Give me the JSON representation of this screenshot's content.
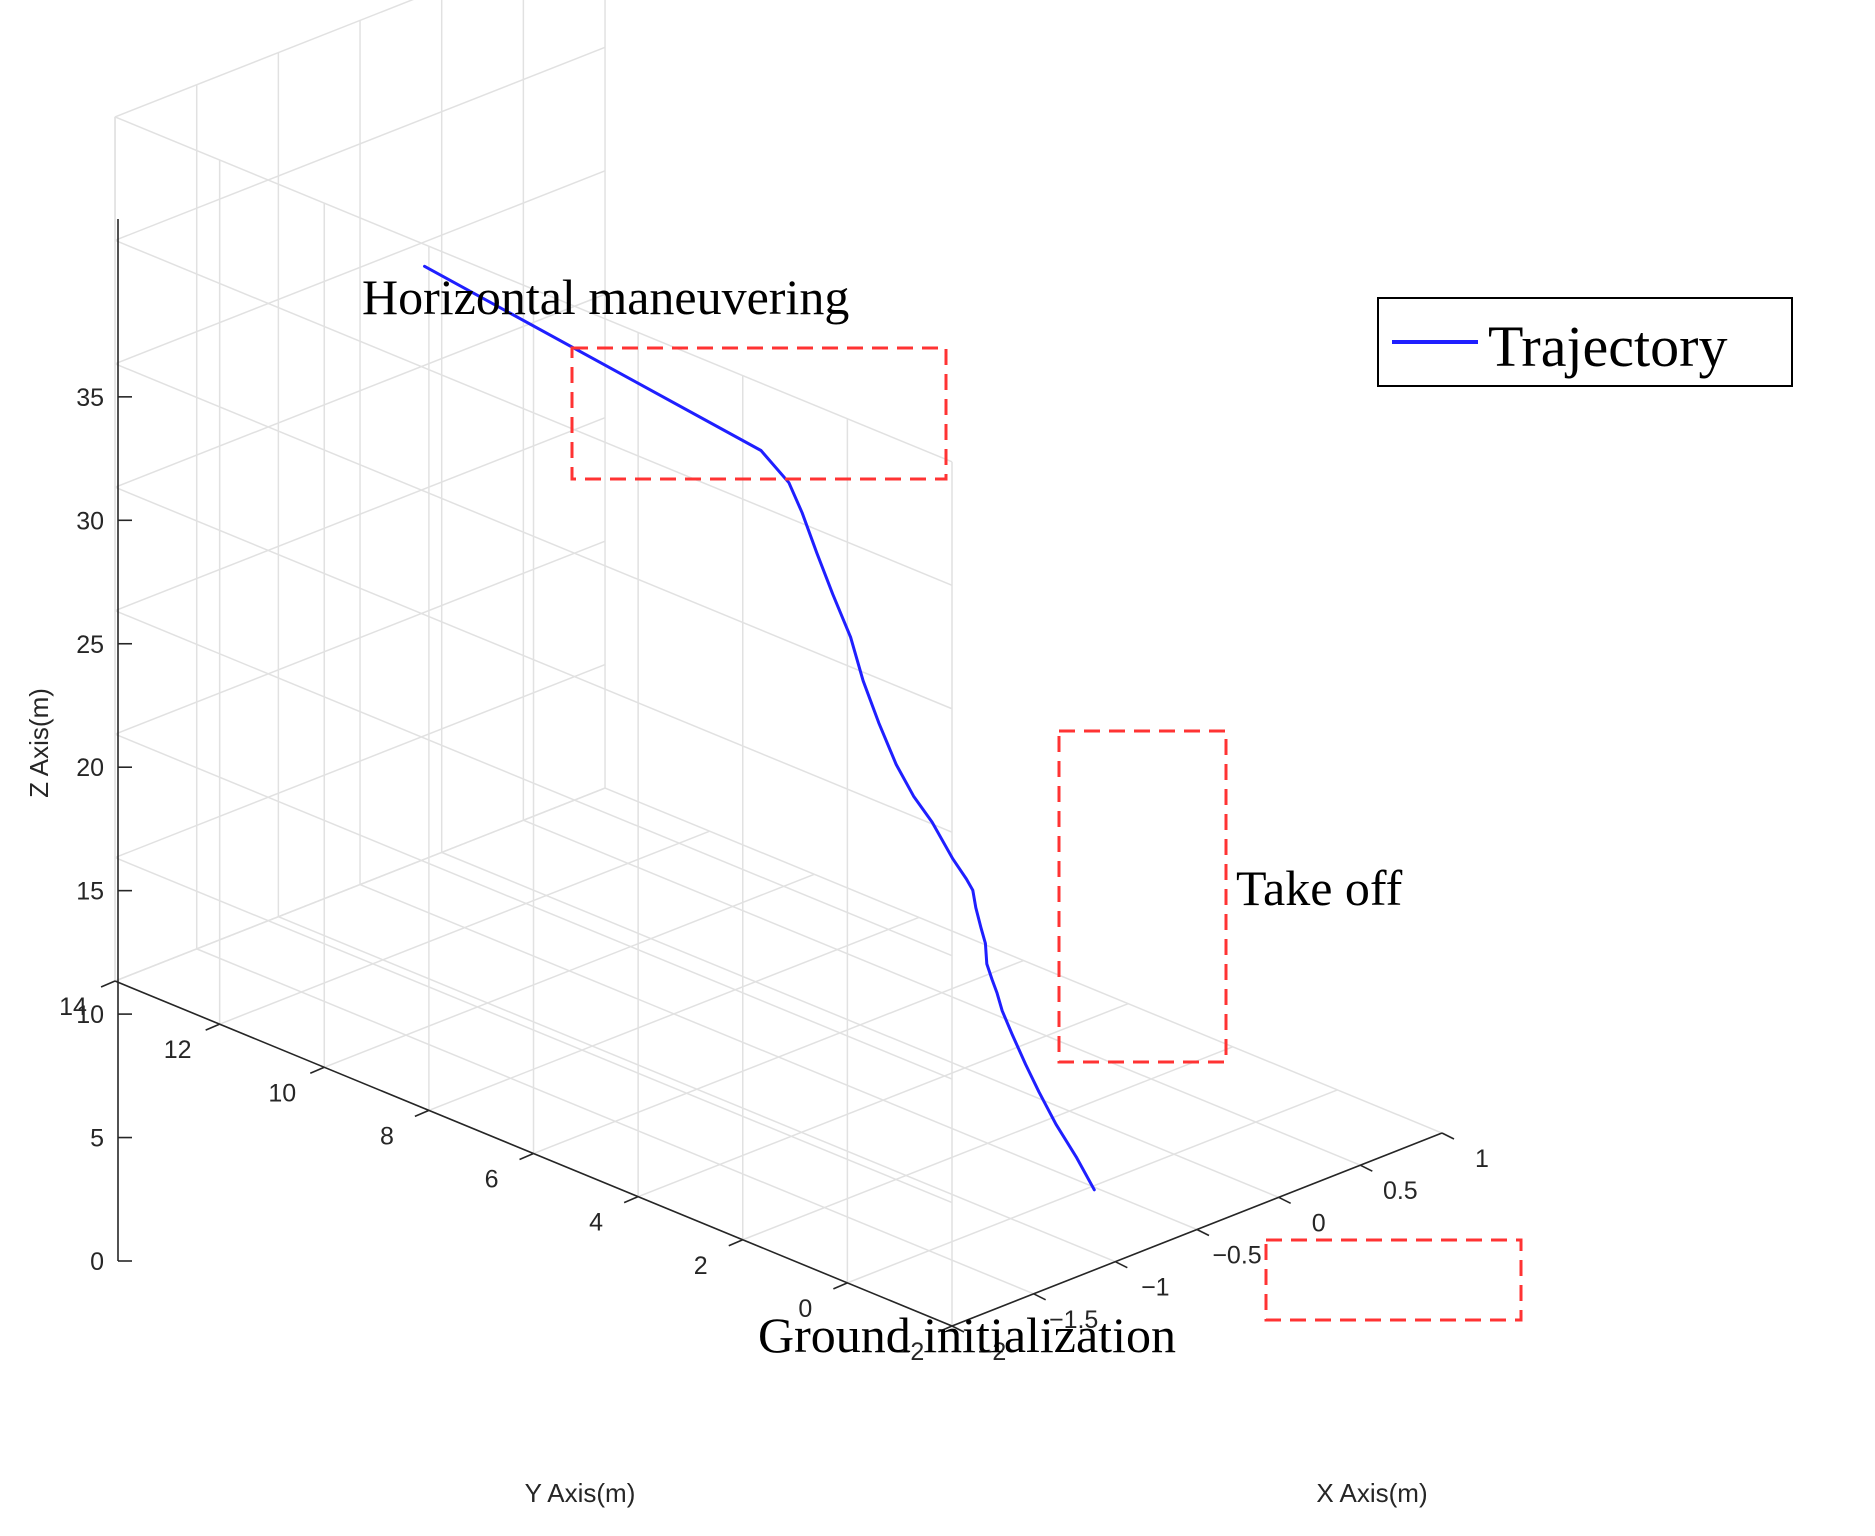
{
  "chart_data": {
    "type": "line",
    "view": "3d",
    "title": "",
    "xlabel": "X Axis(m)",
    "ylabel": "Y Axis(m)",
    "zlabel": "Z Axis(m)",
    "xlim": [
      -2,
      1
    ],
    "ylim": [
      -2,
      14
    ],
    "zlim": [
      0,
      35
    ],
    "x_ticks": [
      "−2",
      "−1.5",
      "−1",
      "−0.5",
      "0",
      "0.5",
      "1"
    ],
    "y_ticks": [
      "−2",
      "0",
      "2",
      "4",
      "6",
      "8",
      "10",
      "12",
      "14"
    ],
    "z_ticks": [
      "0",
      "5",
      "10",
      "15",
      "20",
      "25",
      "30",
      "35"
    ],
    "grid": true,
    "legend_position": "top-right",
    "colors": {
      "trajectory": "#1f1fff",
      "boxes": "#ff3333"
    },
    "series": [
      {
        "name": "Trajectory",
        "x": [
          -0.52,
          -0.57,
          -0.63,
          -0.68,
          -0.72,
          -0.76,
          -0.78,
          -0.79,
          -0.8,
          -0.81,
          -0.79,
          -0.8,
          -0.81,
          -0.8,
          -0.81,
          -0.83,
          -0.86,
          -0.89,
          -0.91,
          -0.93,
          -0.94,
          -0.93,
          -0.94,
          -0.96,
          -0.98,
          -1.0,
          -1.03,
          -1.06
        ],
        "y": [
          -0.1,
          0.09,
          0.29,
          0.46,
          0.59,
          0.72,
          0.85,
          0.92,
          0.98,
          1.05,
          1.14,
          1.19,
          1.26,
          1.35,
          1.44,
          1.64,
          1.94,
          2.2,
          2.47,
          2.74,
          3.01,
          3.28,
          3.59,
          3.83,
          4.05,
          4.24,
          4.68,
          11.02
        ],
        "z": [
          0.0,
          1.3,
          2.6,
          3.9,
          5.0,
          6.2,
          7.1,
          7.8,
          8.3,
          8.9,
          9.6,
          10.2,
          11.0,
          11.6,
          12.0,
          12.7,
          14.0,
          14.9,
          16.0,
          17.5,
          19.0,
          20.5,
          22.0,
          23.5,
          25.0,
          26.1,
          27.1,
          29.1
        ]
      }
    ],
    "annotations": [
      {
        "text": "Horizontal maneuvering",
        "region": "end of trajectory (horizontal segment at top)"
      },
      {
        "text": "Take off",
        "region": "wavy climbing segment"
      },
      {
        "text": "Ground initialization",
        "region": "start of trajectory near ground"
      }
    ]
  }
}
